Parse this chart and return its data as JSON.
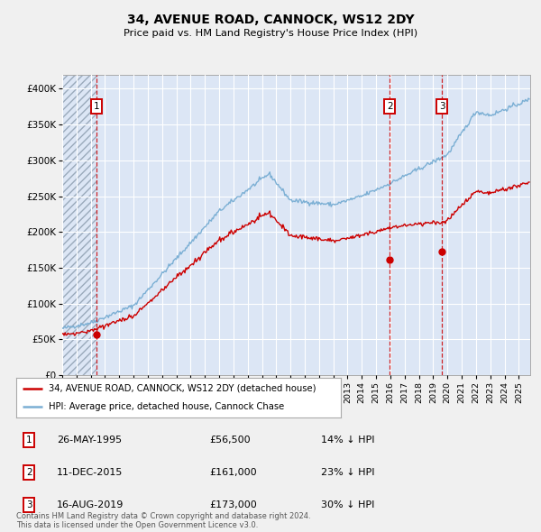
{
  "title": "34, AVENUE ROAD, CANNOCK, WS12 2DY",
  "subtitle": "Price paid vs. HM Land Registry's House Price Index (HPI)",
  "ylabel_ticks": [
    "£0",
    "£50K",
    "£100K",
    "£150K",
    "£200K",
    "£250K",
    "£300K",
    "£350K",
    "£400K"
  ],
  "ytick_vals": [
    0,
    50000,
    100000,
    150000,
    200000,
    250000,
    300000,
    350000,
    400000
  ],
  "ylim": [
    0,
    420000
  ],
  "xlim_start": 1993.0,
  "xlim_end": 2025.8,
  "transactions": [
    {
      "num": 1,
      "date": "26-MAY-1995",
      "price": 56500,
      "year": 1995.4,
      "pct": "14%",
      "dir": "↓"
    },
    {
      "num": 2,
      "date": "11-DEC-2015",
      "price": 161000,
      "year": 2015.95,
      "pct": "23%",
      "dir": "↓"
    },
    {
      "num": 3,
      "date": "16-AUG-2019",
      "price": 173000,
      "year": 2019.62,
      "pct": "30%",
      "dir": "↓"
    }
  ],
  "legend_label_red": "34, AVENUE ROAD, CANNOCK, WS12 2DY (detached house)",
  "legend_label_blue": "HPI: Average price, detached house, Cannock Chase",
  "footer": "Contains HM Land Registry data © Crown copyright and database right 2024.\nThis data is licensed under the Open Government Licence v3.0.",
  "red_color": "#cc0000",
  "blue_color": "#7bafd4",
  "bg_color": "#dce6f5",
  "grid_color": "#ffffff",
  "fig_bg": "#f0f0f0"
}
